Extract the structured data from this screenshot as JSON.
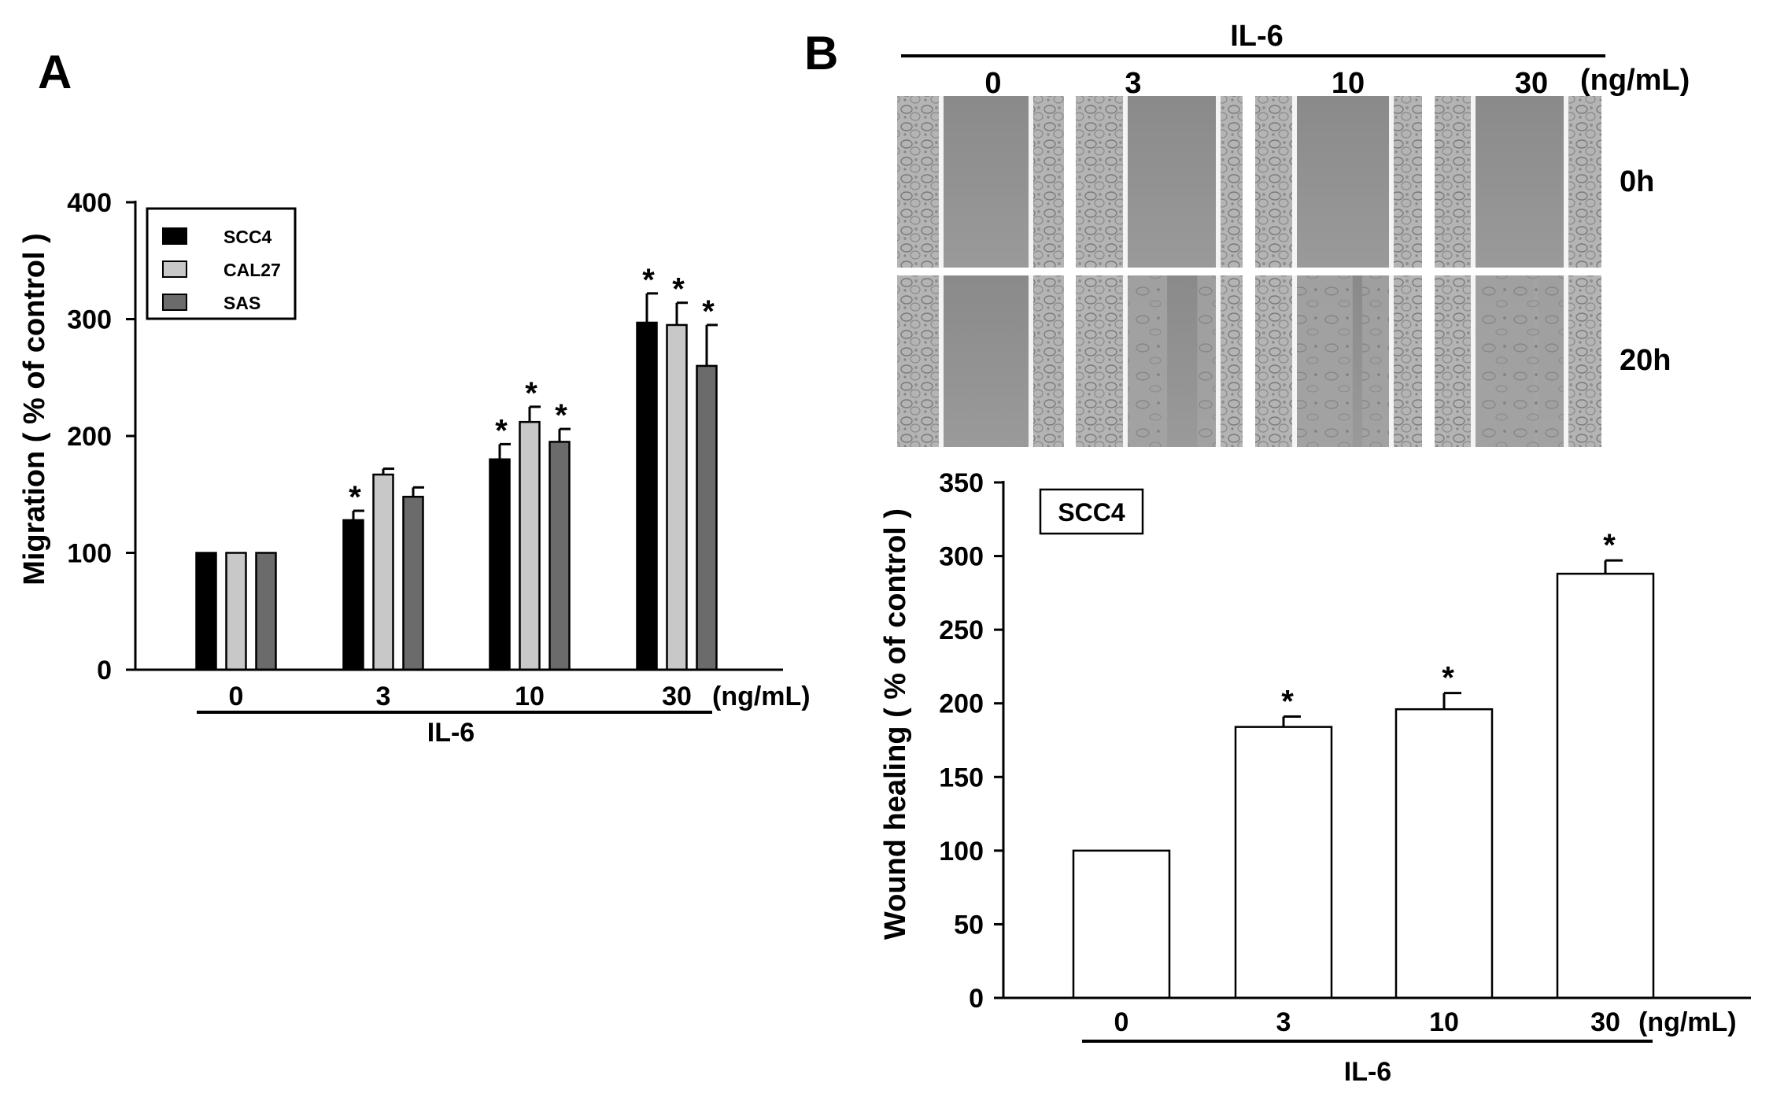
{
  "panels": {
    "a_letter": "A",
    "b_letter": "B"
  },
  "chart_data": [
    {
      "id": "migration",
      "type": "bar",
      "title": "",
      "ylabel": "Migration ( % of control )",
      "xlabel": "IL-6",
      "unit": "(ng/mL)",
      "ylim": [
        0,
        400
      ],
      "yticks": [
        0,
        100,
        200,
        300,
        400
      ],
      "categories": [
        "0",
        "3",
        "10",
        "30"
      ],
      "legend_position": "top-left",
      "series": [
        {
          "name": "SCC4",
          "color": "#000000",
          "values": [
            100,
            128,
            180,
            297
          ],
          "errors": [
            0,
            8,
            13,
            25
          ],
          "significant": [
            false,
            true,
            true,
            true
          ]
        },
        {
          "name": "CAL27",
          "color": "#c8c8c8",
          "values": [
            100,
            167,
            212,
            295
          ],
          "errors": [
            0,
            5,
            13,
            19
          ],
          "significant": [
            false,
            false,
            true,
            true
          ]
        },
        {
          "name": "SAS",
          "color": "#6b6b6b",
          "values": [
            100,
            148,
            195,
            260
          ],
          "errors": [
            0,
            8,
            11,
            35
          ],
          "significant": [
            false,
            false,
            true,
            true
          ]
        }
      ]
    },
    {
      "id": "wound",
      "type": "bar",
      "title": "SCC4",
      "ylabel": "Wound healing ( % of control )",
      "xlabel": "IL-6",
      "unit": "(ng/mL)",
      "ylim": [
        0,
        350
      ],
      "yticks": [
        0,
        50,
        100,
        150,
        200,
        250,
        300,
        350
      ],
      "categories": [
        "0",
        "3",
        "10",
        "30"
      ],
      "series": [
        {
          "name": "SCC4",
          "color": "#ffffff",
          "values": [
            100,
            184,
            196,
            288
          ],
          "errors": [
            0,
            7,
            11,
            9
          ],
          "significant": [
            false,
            true,
            true,
            true
          ]
        }
      ]
    }
  ],
  "micrographs": {
    "header": "IL-6",
    "concentrations": [
      "0",
      "3",
      "10",
      "30"
    ],
    "unit": "(ng/mL)",
    "rows": [
      "0h",
      "20h"
    ]
  },
  "significance_mark": "*"
}
